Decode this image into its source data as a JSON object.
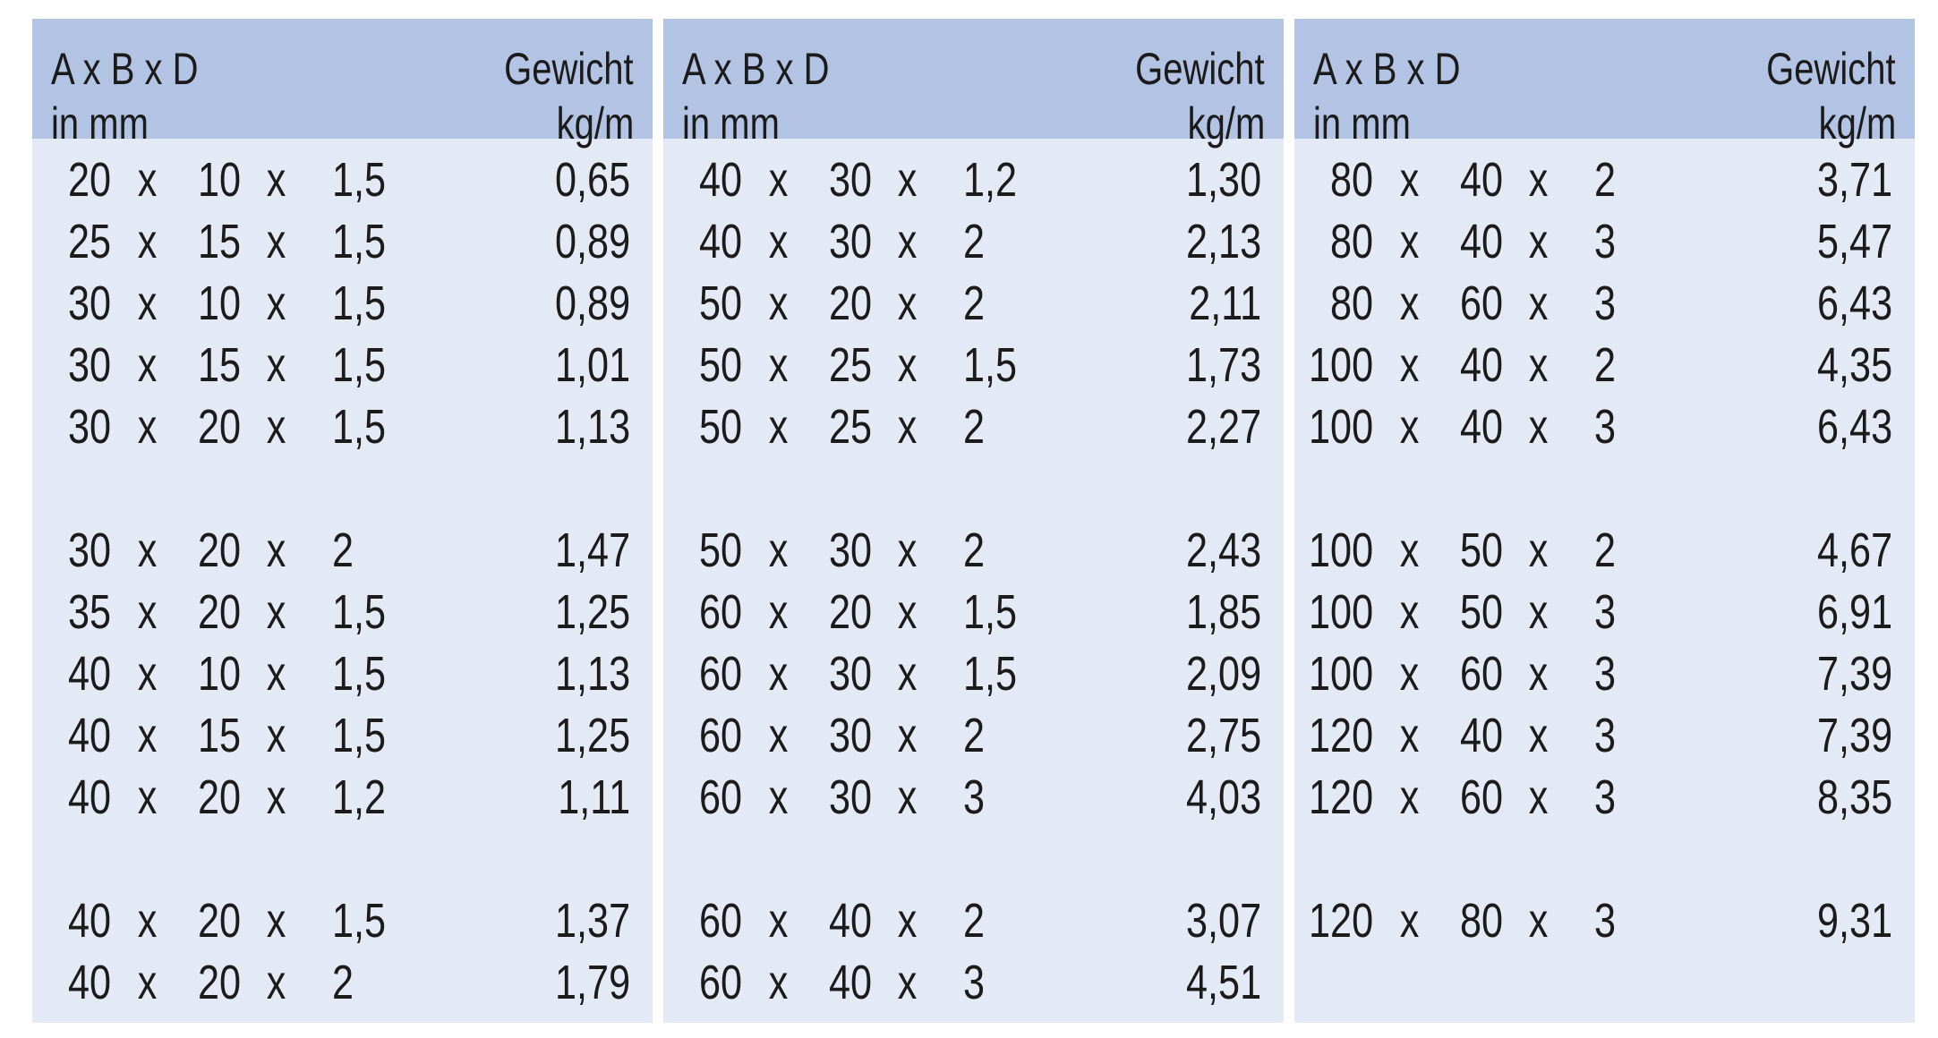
{
  "header": {
    "dims_line1": "A x B x D",
    "dims_line2": "in mm",
    "weight_line1": "Gewicht",
    "weight_line2": "kg/m",
    "times": "x"
  },
  "colors": {
    "header_bg": "#b3c3e3",
    "body_bg": "#e3e9f5"
  },
  "panels": [
    {
      "rows": [
        [
          "20",
          "10",
          "1,5",
          "0,65"
        ],
        [
          "25",
          "15",
          "1,5",
          "0,89"
        ],
        [
          "30",
          "10",
          "1,5",
          "0,89"
        ],
        [
          "30",
          "15",
          "1,5",
          "1,01"
        ],
        [
          "30",
          "20",
          "1,5",
          "1,13"
        ],
        null,
        [
          "30",
          "20",
          "2",
          "1,47"
        ],
        [
          "35",
          "20",
          "1,5",
          "1,25"
        ],
        [
          "40",
          "10",
          "1,5",
          "1,13"
        ],
        [
          "40",
          "15",
          "1,5",
          "1,25"
        ],
        [
          "40",
          "20",
          "1,2",
          "1,11"
        ],
        null,
        [
          "40",
          "20",
          "1,5",
          "1,37"
        ],
        [
          "40",
          "20",
          "2",
          "1,79"
        ]
      ]
    },
    {
      "rows": [
        [
          "40",
          "30",
          "1,2",
          "1,30"
        ],
        [
          "40",
          "30",
          "2",
          "2,13"
        ],
        [
          "50",
          "20",
          "2",
          "2,11"
        ],
        [
          "50",
          "25",
          "1,5",
          "1,73"
        ],
        [
          "50",
          "25",
          "2",
          "2,27"
        ],
        null,
        [
          "50",
          "30",
          "2",
          "2,43"
        ],
        [
          "60",
          "20",
          "1,5",
          "1,85"
        ],
        [
          "60",
          "30",
          "1,5",
          "2,09"
        ],
        [
          "60",
          "30",
          "2",
          "2,75"
        ],
        [
          "60",
          "30",
          "3",
          "4,03"
        ],
        null,
        [
          "60",
          "40",
          "2",
          "3,07"
        ],
        [
          "60",
          "40",
          "3",
          "4,51"
        ]
      ]
    },
    {
      "rows": [
        [
          "80",
          "40",
          "2",
          "3,71"
        ],
        [
          "80",
          "40",
          "3",
          "5,47"
        ],
        [
          "80",
          "60",
          "3",
          "6,43"
        ],
        [
          "100",
          "40",
          "2",
          "4,35"
        ],
        [
          "100",
          "40",
          "3",
          "6,43"
        ],
        null,
        [
          "100",
          "50",
          "2",
          "4,67"
        ],
        [
          "100",
          "50",
          "3",
          "6,91"
        ],
        [
          "100",
          "60",
          "3",
          "7,39"
        ],
        [
          "120",
          "40",
          "3",
          "7,39"
        ],
        [
          "120",
          "60",
          "3",
          "8,35"
        ],
        null,
        [
          "120",
          "80",
          "3",
          "9,31"
        ]
      ]
    }
  ]
}
